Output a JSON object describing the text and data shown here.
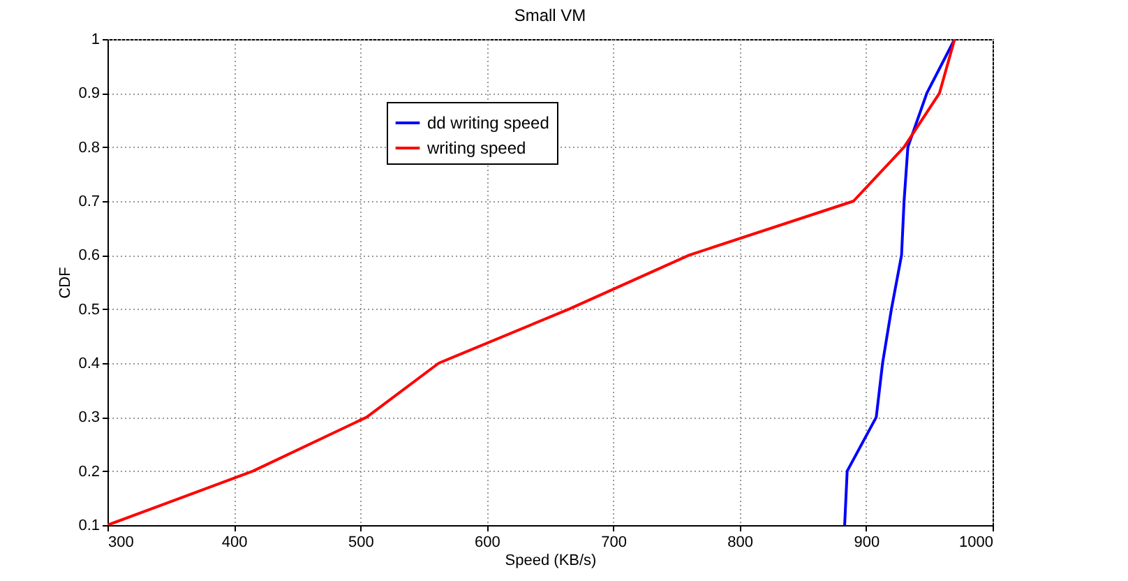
{
  "chart_data": {
    "type": "line",
    "title": "Small VM",
    "xlabel": "Speed (KB/s)",
    "ylabel": "CDF",
    "xlim": [
      300,
      1000
    ],
    "xticks": [
      300,
      400,
      500,
      600,
      700,
      800,
      900,
      1000
    ],
    "ylim": [
      0.1,
      1
    ],
    "yticks": [
      0.1,
      0.2,
      0.3,
      0.4,
      0.5,
      0.6,
      0.7,
      0.8,
      0.9,
      1
    ],
    "grid": true,
    "legend": "top",
    "line_style": "solid",
    "series": [
      {
        "name": "dd writing speed",
        "color": "#0000ff",
        "x": [
          883,
          885,
          908,
          913,
          920,
          928,
          930,
          933,
          948,
          970
        ],
        "values": [
          0.1,
          0.2,
          0.3,
          0.4,
          0.5,
          0.6,
          0.7,
          0.8,
          0.9,
          1
        ]
      },
      {
        "name": "writing speed",
        "color": "#ff0000",
        "x": [
          300,
          415,
          505,
          562,
          665,
          760,
          890,
          930,
          958,
          970
        ],
        "values": [
          0.1,
          0.2,
          0.3,
          0.4,
          0.5,
          0.6,
          0.7,
          0.8,
          0.9,
          1
        ]
      }
    ]
  }
}
